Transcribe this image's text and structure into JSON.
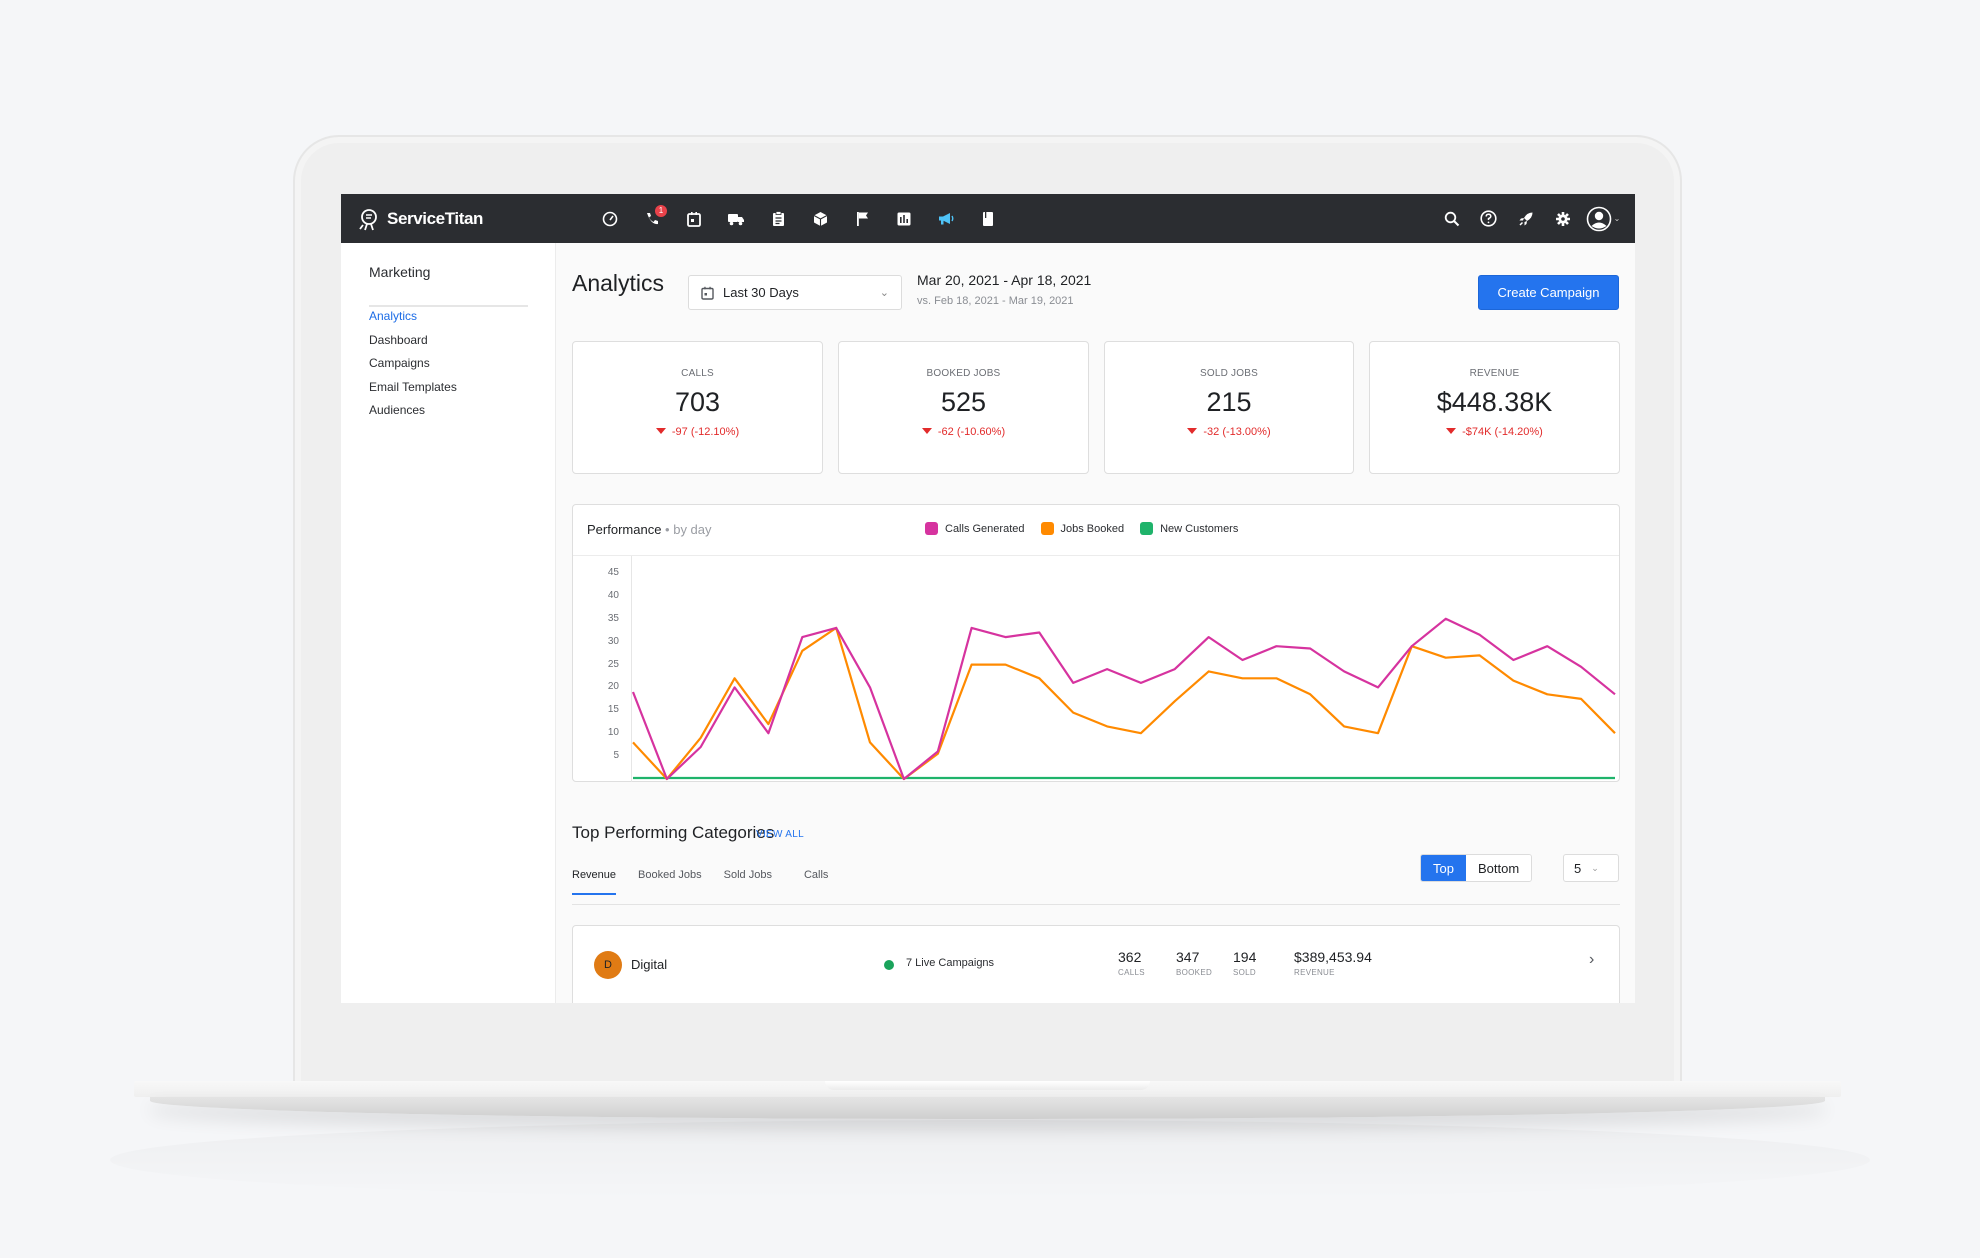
{
  "app": {
    "brand": "ServiceTitan"
  },
  "nav": {
    "icons": [
      {
        "name": "dashboard-gauge-icon",
        "glyph": "gauge"
      },
      {
        "name": "phone-icon",
        "glyph": "phone",
        "badge": "1"
      },
      {
        "name": "calendar-icon",
        "glyph": "calendar"
      },
      {
        "name": "truck-icon",
        "glyph": "truck"
      },
      {
        "name": "clipboard-icon",
        "glyph": "clipboard"
      },
      {
        "name": "box-icon",
        "glyph": "box"
      },
      {
        "name": "flag-icon",
        "glyph": "flag"
      },
      {
        "name": "reports-chart-icon",
        "glyph": "chart"
      },
      {
        "name": "marketing-megaphone-icon",
        "glyph": "megaphone",
        "active": true
      },
      {
        "name": "book-icon",
        "glyph": "book"
      }
    ],
    "right_icons": [
      "search-icon",
      "help-icon",
      "rocket-icon",
      "settings-gear-icon",
      "user-avatar-icon"
    ],
    "phone_badge": "1",
    "active_color": "#4fc3f7"
  },
  "sidebar": {
    "title": "Marketing",
    "items": [
      {
        "label": "Analytics",
        "active": true
      },
      {
        "label": "Dashboard"
      },
      {
        "label": "Campaigns"
      },
      {
        "label": "Email Templates"
      },
      {
        "label": "Audiences"
      }
    ]
  },
  "header": {
    "title": "Analytics",
    "date_select": "Last 30 Days",
    "date_range": "Mar 20, 2021 - Apr 18, 2021",
    "compare_range": "vs. Feb 18, 2021 - Mar 19, 2021",
    "create_button": "Create Campaign"
  },
  "kpis": [
    {
      "label": "CALLS",
      "value": "703",
      "delta": "-97 (-12.10%)"
    },
    {
      "label": "BOOKED JOBS",
      "value": "525",
      "delta": "-62 (-10.60%)"
    },
    {
      "label": "SOLD JOBS",
      "value": "215",
      "delta": "-32 (-13.00%)"
    },
    {
      "label": "REVENUE",
      "value": "$448.38K",
      "delta": "-$74K (-14.20%)"
    }
  ],
  "performance": {
    "title": "Performance",
    "subtitle": "• by day",
    "legend": [
      {
        "label": "Calls Generated",
        "color": "#d6339f"
      },
      {
        "label": "Jobs Booked",
        "color": "#ff8a00"
      },
      {
        "label": "New Customers",
        "color": "#1fb36b"
      }
    ]
  },
  "chart_data": {
    "type": "line",
    "title": "Performance • by day",
    "xlabel": "",
    "ylabel": "",
    "x": [
      1,
      2,
      3,
      4,
      5,
      6,
      7,
      8,
      9,
      10,
      11,
      12,
      13,
      14,
      15,
      16,
      17,
      18,
      19,
      20,
      21,
      22,
      23,
      24,
      25,
      26,
      27,
      28,
      29,
      30
    ],
    "y_ticks": [
      5,
      10,
      15,
      20,
      25,
      30,
      35,
      40,
      45
    ],
    "ylim": [
      0,
      47
    ],
    "grid": false,
    "legend_position": "top",
    "series": [
      {
        "name": "Calls Generated",
        "color": "#d6339f",
        "values": [
          19,
          0,
          7,
          20,
          10,
          31,
          33,
          20,
          0,
          6,
          33,
          31,
          32,
          21,
          24,
          21,
          24,
          31,
          26,
          29,
          28.5,
          23.5,
          20,
          29,
          35,
          31.5,
          26,
          29,
          24.5,
          18.5
        ]
      },
      {
        "name": "Jobs Booked",
        "color": "#ff8a00",
        "values": [
          8,
          0,
          9,
          22,
          12,
          28,
          33,
          8,
          0,
          5.5,
          25,
          25,
          22,
          14.5,
          11.5,
          10,
          17,
          23.5,
          22,
          22,
          18.5,
          11.5,
          10,
          29,
          26.5,
          27,
          21.5,
          18.5,
          17.5,
          10
        ]
      },
      {
        "name": "New Customers",
        "color": "#1fb36b",
        "values": [
          0,
          0,
          0,
          0,
          0,
          0,
          0,
          0,
          0,
          0,
          0,
          0,
          0,
          0,
          0,
          0,
          0,
          0,
          0,
          0,
          0,
          0,
          0,
          0,
          0,
          0,
          0,
          0,
          0,
          0
        ]
      }
    ]
  },
  "top_categories": {
    "title": "Top Performing Categories",
    "view_all": "VIEW ALL",
    "tabs": [
      {
        "label": "Revenue",
        "active": true
      },
      {
        "label": "Booked Jobs"
      },
      {
        "label": "Sold Jobs"
      },
      {
        "label": "Calls"
      }
    ],
    "toggle": [
      "Top",
      "Bottom"
    ],
    "toggle_active": "Top",
    "count": "5",
    "rows": [
      {
        "initial": "D",
        "name": "Digital",
        "status": "7 Live Campaigns",
        "calls": "362",
        "calls_label": "CALLS",
        "booked": "347",
        "booked_label": "BOOKED",
        "sold": "194",
        "sold_label": "SOLD",
        "revenue": "$389,453.94",
        "revenue_label": "REVENUE"
      }
    ]
  }
}
